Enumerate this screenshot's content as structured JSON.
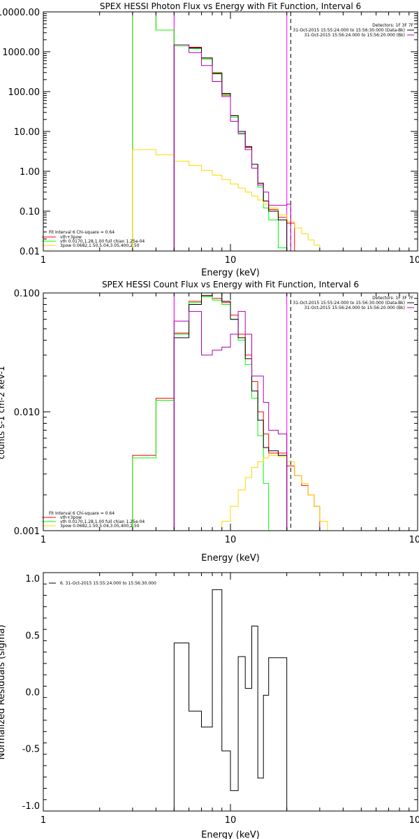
{
  "colors": {
    "background": "#ffffff",
    "axes": "#000000",
    "total": "#ff0000",
    "vth": "#00ff00",
    "3pow": "#ffd700",
    "data": "#000000",
    "bk": "#ff00ff",
    "sim": "#a000a0",
    "residual": "#000000"
  },
  "chart_data": [
    {
      "type": "line",
      "title": "SPEX HESSI Photon Flux vs Energy with Fit Function, Interval 6",
      "xlabel": "Energy (keV)",
      "ylabel": "",
      "xscale": "log",
      "yscale": "log",
      "xlim": [
        1,
        100
      ],
      "ylim": [
        0.01,
        10000
      ],
      "xtick_labels": [
        "1",
        "10",
        "100"
      ],
      "ytick_values": [
        0.01,
        0.1,
        1,
        10,
        100,
        1000,
        10000
      ],
      "ytick_labels": [
        "0.01",
        "0.10",
        "1.00",
        "10.00",
        "100.00",
        "1000.00",
        "10000.00"
      ],
      "vlines": [
        {
          "x": 5.0,
          "style": "dotted",
          "color": "#000000"
        },
        {
          "x": 5.0,
          "style": "solid",
          "color": "#ff00ff"
        },
        {
          "x": 21.0,
          "style": "dashed",
          "color": "#000000"
        },
        {
          "x": 20.0,
          "style": "solid",
          "color": "#ff00ff"
        }
      ],
      "legend_top_right": [
        "Detectors: 1F 3F 7F",
        "31-Oct-2015 15:55:24.000 to 15:56:30.000 (Data-Bk)",
        "31-Oct-2015 15:56:24.000 to 15:56:20.000 (Bk)"
      ],
      "legend_bottom_left": [
        "Fit Interval  6    Chi-square = 0.64",
        "vth+3pow",
        "vth 0.0170,1.28,1.00  full chian 1.25e-04",
        "3pow 0.0682,1.50,5.04,3.05,400,2.50"
      ],
      "series": [
        {
          "name": "vth+3pow",
          "color": "#ff0000",
          "steps": true,
          "edges": [
            3,
            4,
            5,
            6,
            7,
            8,
            9,
            10,
            11,
            12,
            13,
            14,
            15,
            16,
            18,
            20,
            22
          ],
          "values": [
            10000,
            3500,
            1500,
            1300,
            700,
            300,
            85,
            25,
            10,
            4.2,
            1.5,
            0.5,
            0.18,
            0.11,
            0.07,
            0.05
          ]
        },
        {
          "name": "vth 0.0170,1.28,1.00  full chian 1.25e-04",
          "color": "#00ff00",
          "steps": true,
          "edges": [
            3,
            4,
            5,
            6,
            7,
            8,
            9,
            10,
            11,
            12,
            13,
            14,
            15,
            16,
            18,
            20
          ],
          "values": [
            10000,
            3500,
            1400,
            1200,
            650,
            290,
            80,
            23,
            8.5,
            3.5,
            1.2,
            0.4,
            0.12,
            0.06,
            0.012
          ]
        },
        {
          "name": "3pow 0.0682,1.50,5.04,3.05,400,2.50",
          "color": "#ffd700",
          "steps": true,
          "edges": [
            3,
            4,
            5,
            6,
            7,
            8,
            9,
            10,
            11,
            12,
            13,
            14,
            15,
            16,
            18,
            20,
            22,
            24,
            26,
            28,
            30,
            33
          ],
          "values": [
            3.5,
            2.6,
            1.8,
            1.4,
            1.05,
            0.8,
            0.62,
            0.48,
            0.38,
            0.3,
            0.24,
            0.19,
            0.15,
            0.12,
            0.08,
            0.055,
            0.038,
            0.027,
            0.019,
            0.014,
            0.01
          ]
        },
        {
          "name": "",
          "color": "#000000",
          "steps": true,
          "edges": [
            5,
            6,
            7,
            8,
            9,
            10,
            11,
            12,
            13,
            14,
            15,
            16,
            18,
            20
          ],
          "values": [
            1500,
            1250,
            700,
            280,
            90,
            25,
            10,
            4,
            1.5,
            0.5,
            0.18,
            0.1,
            0.06
          ]
        },
        {
          "name": "",
          "color": "#b000b0",
          "steps": true,
          "edges": [
            5,
            6,
            7,
            8,
            9,
            10,
            11,
            12,
            13,
            14,
            15,
            16,
            18,
            20,
            21
          ],
          "values": [
            1500,
            950,
            450,
            180,
            75,
            18,
            9,
            3.5,
            1.2,
            0.45,
            0.3,
            0.14,
            0.14,
            0.15
          ]
        }
      ]
    },
    {
      "type": "line",
      "title": "SPEX HESSI Count Flux vs Energy with Fit Function, Interval 6",
      "xlabel": "Energy (keV)",
      "ylabel": "counts s-1 cm-2 keV-1",
      "xscale": "log",
      "yscale": "log",
      "xlim": [
        1,
        100
      ],
      "ylim": [
        0.001,
        0.1
      ],
      "xtick_labels": [
        "1",
        "10",
        "100"
      ],
      "ytick_values": [
        0.001,
        0.01,
        0.1
      ],
      "ytick_labels": [
        "0.001",
        "0.010",
        "0.100"
      ],
      "vlines": [
        {
          "x": 5.0,
          "style": "dotted",
          "color": "#000000"
        },
        {
          "x": 5.0,
          "style": "solid",
          "color": "#ff00ff"
        },
        {
          "x": 21.0,
          "style": "dashed",
          "color": "#000000"
        },
        {
          "x": 20.0,
          "style": "solid",
          "color": "#ff00ff"
        }
      ],
      "legend_top_right": [
        "Detectors: 1F 3F 7F",
        "31-Oct-2015 15:55:24.000 to 15:56:30.000 (Data-Bk)",
        "31-Oct-2015 15:56:24.000 to 15:56:20.000 (Bk)"
      ],
      "legend_bottom_left": [
        "Fit Interval  6    Chi-square = 0.64",
        "vth+3pow",
        "vth 0.0170,1.28,1.00  full chian 1.25e-04",
        "3pow 0.0682,1.50,5.04,3.05,400,2.50"
      ],
      "series": [
        {
          "name": "vth+3pow",
          "color": "#ff0000",
          "steps": true,
          "edges": [
            3,
            4,
            5,
            6,
            7,
            8,
            9,
            10,
            11,
            12,
            13,
            14,
            15,
            16,
            18,
            20,
            22,
            24,
            26,
            28,
            30
          ],
          "values": [
            0.0043,
            0.013,
            0.046,
            0.085,
            0.095,
            0.09,
            0.083,
            0.065,
            0.045,
            0.03,
            0.018,
            0.01,
            0.0065,
            0.0045,
            0.0045,
            0.0035,
            0.0029,
            0.0024,
            0.002,
            0.0016
          ]
        },
        {
          "name": "vth 0.0170,1.28,1.00  full chian 1.25e-04",
          "color": "#00ff00",
          "steps": true,
          "edges": [
            3,
            4,
            5,
            6,
            7,
            8,
            9,
            10,
            11,
            12,
            13,
            14,
            15,
            16,
            18
          ],
          "values": [
            0.0041,
            0.0125,
            0.045,
            0.083,
            0.093,
            0.087,
            0.08,
            0.06,
            0.04,
            0.025,
            0.013,
            0.0063,
            0.0025,
            0.001
          ]
        },
        {
          "name": "3pow 0.0682,1.50,5.04,3.05,400,2.50",
          "color": "#ffd700",
          "steps": true,
          "edges": [
            9,
            10,
            11,
            12,
            13,
            14,
            15,
            16,
            18,
            20,
            22,
            24,
            26,
            28,
            30,
            33
          ],
          "values": [
            0.0012,
            0.0016,
            0.0022,
            0.0028,
            0.0034,
            0.0038,
            0.0041,
            0.0043,
            0.0042,
            0.0038,
            0.0029,
            0.0025,
            0.002,
            0.0016,
            0.0012
          ]
        },
        {
          "name": "",
          "color": "#000000",
          "steps": true,
          "edges": [
            5,
            6,
            7,
            8,
            9,
            10,
            11,
            12,
            13,
            14,
            15,
            16,
            18,
            20
          ],
          "values": [
            0.042,
            0.08,
            0.095,
            0.1,
            0.085,
            0.06,
            0.042,
            0.028,
            0.015,
            0.0085,
            0.005,
            0.0047,
            0.0043
          ]
        },
        {
          "name": "",
          "color": "#b000b0",
          "steps": true,
          "edges": [
            5,
            6,
            7,
            8,
            9,
            10,
            11,
            12,
            13,
            14,
            15,
            16,
            18,
            20
          ],
          "values": [
            0.058,
            0.07,
            0.03,
            0.033,
            0.035,
            0.045,
            0.07,
            0.045,
            0.02,
            0.02,
            0.012,
            0.007,
            0.0065
          ]
        }
      ]
    },
    {
      "type": "line",
      "title": "",
      "xlabel": "Energy (keV)",
      "ylabel": "Normalized Residuals (sigma)",
      "xscale": "log",
      "yscale": "linear",
      "xlim": [
        1,
        100
      ],
      "ylim": [
        -1.05,
        1.05
      ],
      "xtick_labels": [
        "1",
        "10",
        "100"
      ],
      "ytick_values": [
        -1.0,
        -0.5,
        0.0,
        0.5,
        1.0
      ],
      "ytick_labels": [
        "-1.0",
        "-0.5",
        "0.0",
        "0.5",
        "1.0"
      ],
      "legend_top_left": [
        "6. 31-Oct-2015 15:55:24.000 to 15:56:30.000"
      ],
      "series": [
        {
          "name": "6. 31-Oct-2015 15:55:24.000 to 15:56:30.000",
          "color": "#000000",
          "steps": true,
          "edges": [
            5,
            6,
            7,
            8,
            9,
            10,
            11,
            12,
            13,
            14,
            15,
            16,
            18,
            20
          ],
          "values": [
            0.43,
            -0.17,
            -0.31,
            0.9,
            -0.52,
            -0.87,
            0.31,
            0.03,
            0.58,
            -0.76,
            -0.03,
            0.3,
            0.3
          ],
          "start_from": -1.05,
          "end_to": -1.05
        }
      ]
    }
  ]
}
